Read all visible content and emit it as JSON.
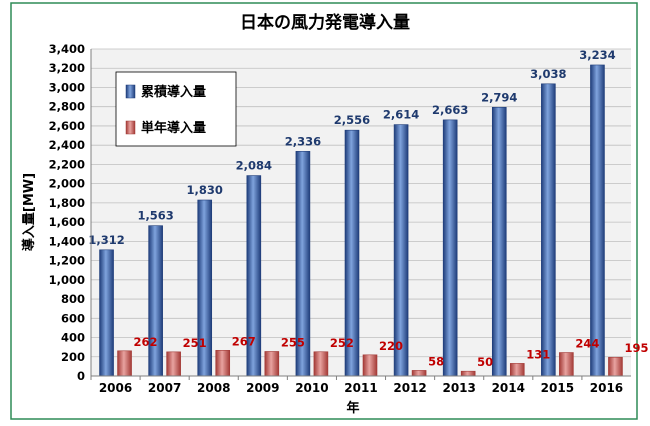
{
  "chart_data": {
    "type": "bar",
    "title": "日本の風力発電導入量",
    "xlabel": "年",
    "ylabel": "導入量[MW]",
    "ylim": [
      0,
      3400
    ],
    "ytick_step": 200,
    "ytick_labels": [
      "0",
      "200",
      "400",
      "600",
      "800",
      "1,000",
      "1,200",
      "1,400",
      "1,600",
      "1,800",
      "2,000",
      "2,200",
      "2,400",
      "2,600",
      "2,800",
      "3,000",
      "3,200",
      "3,400"
    ],
    "grid": true,
    "legend_position": "top-left",
    "categories": [
      "2006",
      "2007",
      "2008",
      "2009",
      "2010",
      "2011",
      "2012",
      "2013",
      "2014",
      "2015",
      "2016"
    ],
    "series": [
      {
        "name": "累積導入量",
        "color": "#2f5597",
        "label_color": "#1f3a6e",
        "values": [
          1312,
          1563,
          1830,
          2084,
          2336,
          2556,
          2614,
          2663,
          2794,
          3038,
          3234
        ],
        "value_labels": [
          "1,312",
          "1,563",
          "1,830",
          "2,084",
          "2,336",
          "2,556",
          "2,614",
          "2,663",
          "2,794",
          "3,038",
          "3,234"
        ]
      },
      {
        "name": "単年導入量",
        "color": "#c0504d",
        "label_color": "#c00000",
        "values": [
          262,
          251,
          267,
          255,
          252,
          220,
          58,
          50,
          131,
          244,
          195
        ],
        "value_labels": [
          "262",
          "251",
          "267",
          "255",
          "252",
          "220",
          "58",
          "50",
          "131",
          "244",
          "195"
        ]
      }
    ]
  },
  "colors": {
    "frame_border": "#2e8b57",
    "plot_background": "#f2f2f2",
    "gridline": "#bfbfbf"
  }
}
